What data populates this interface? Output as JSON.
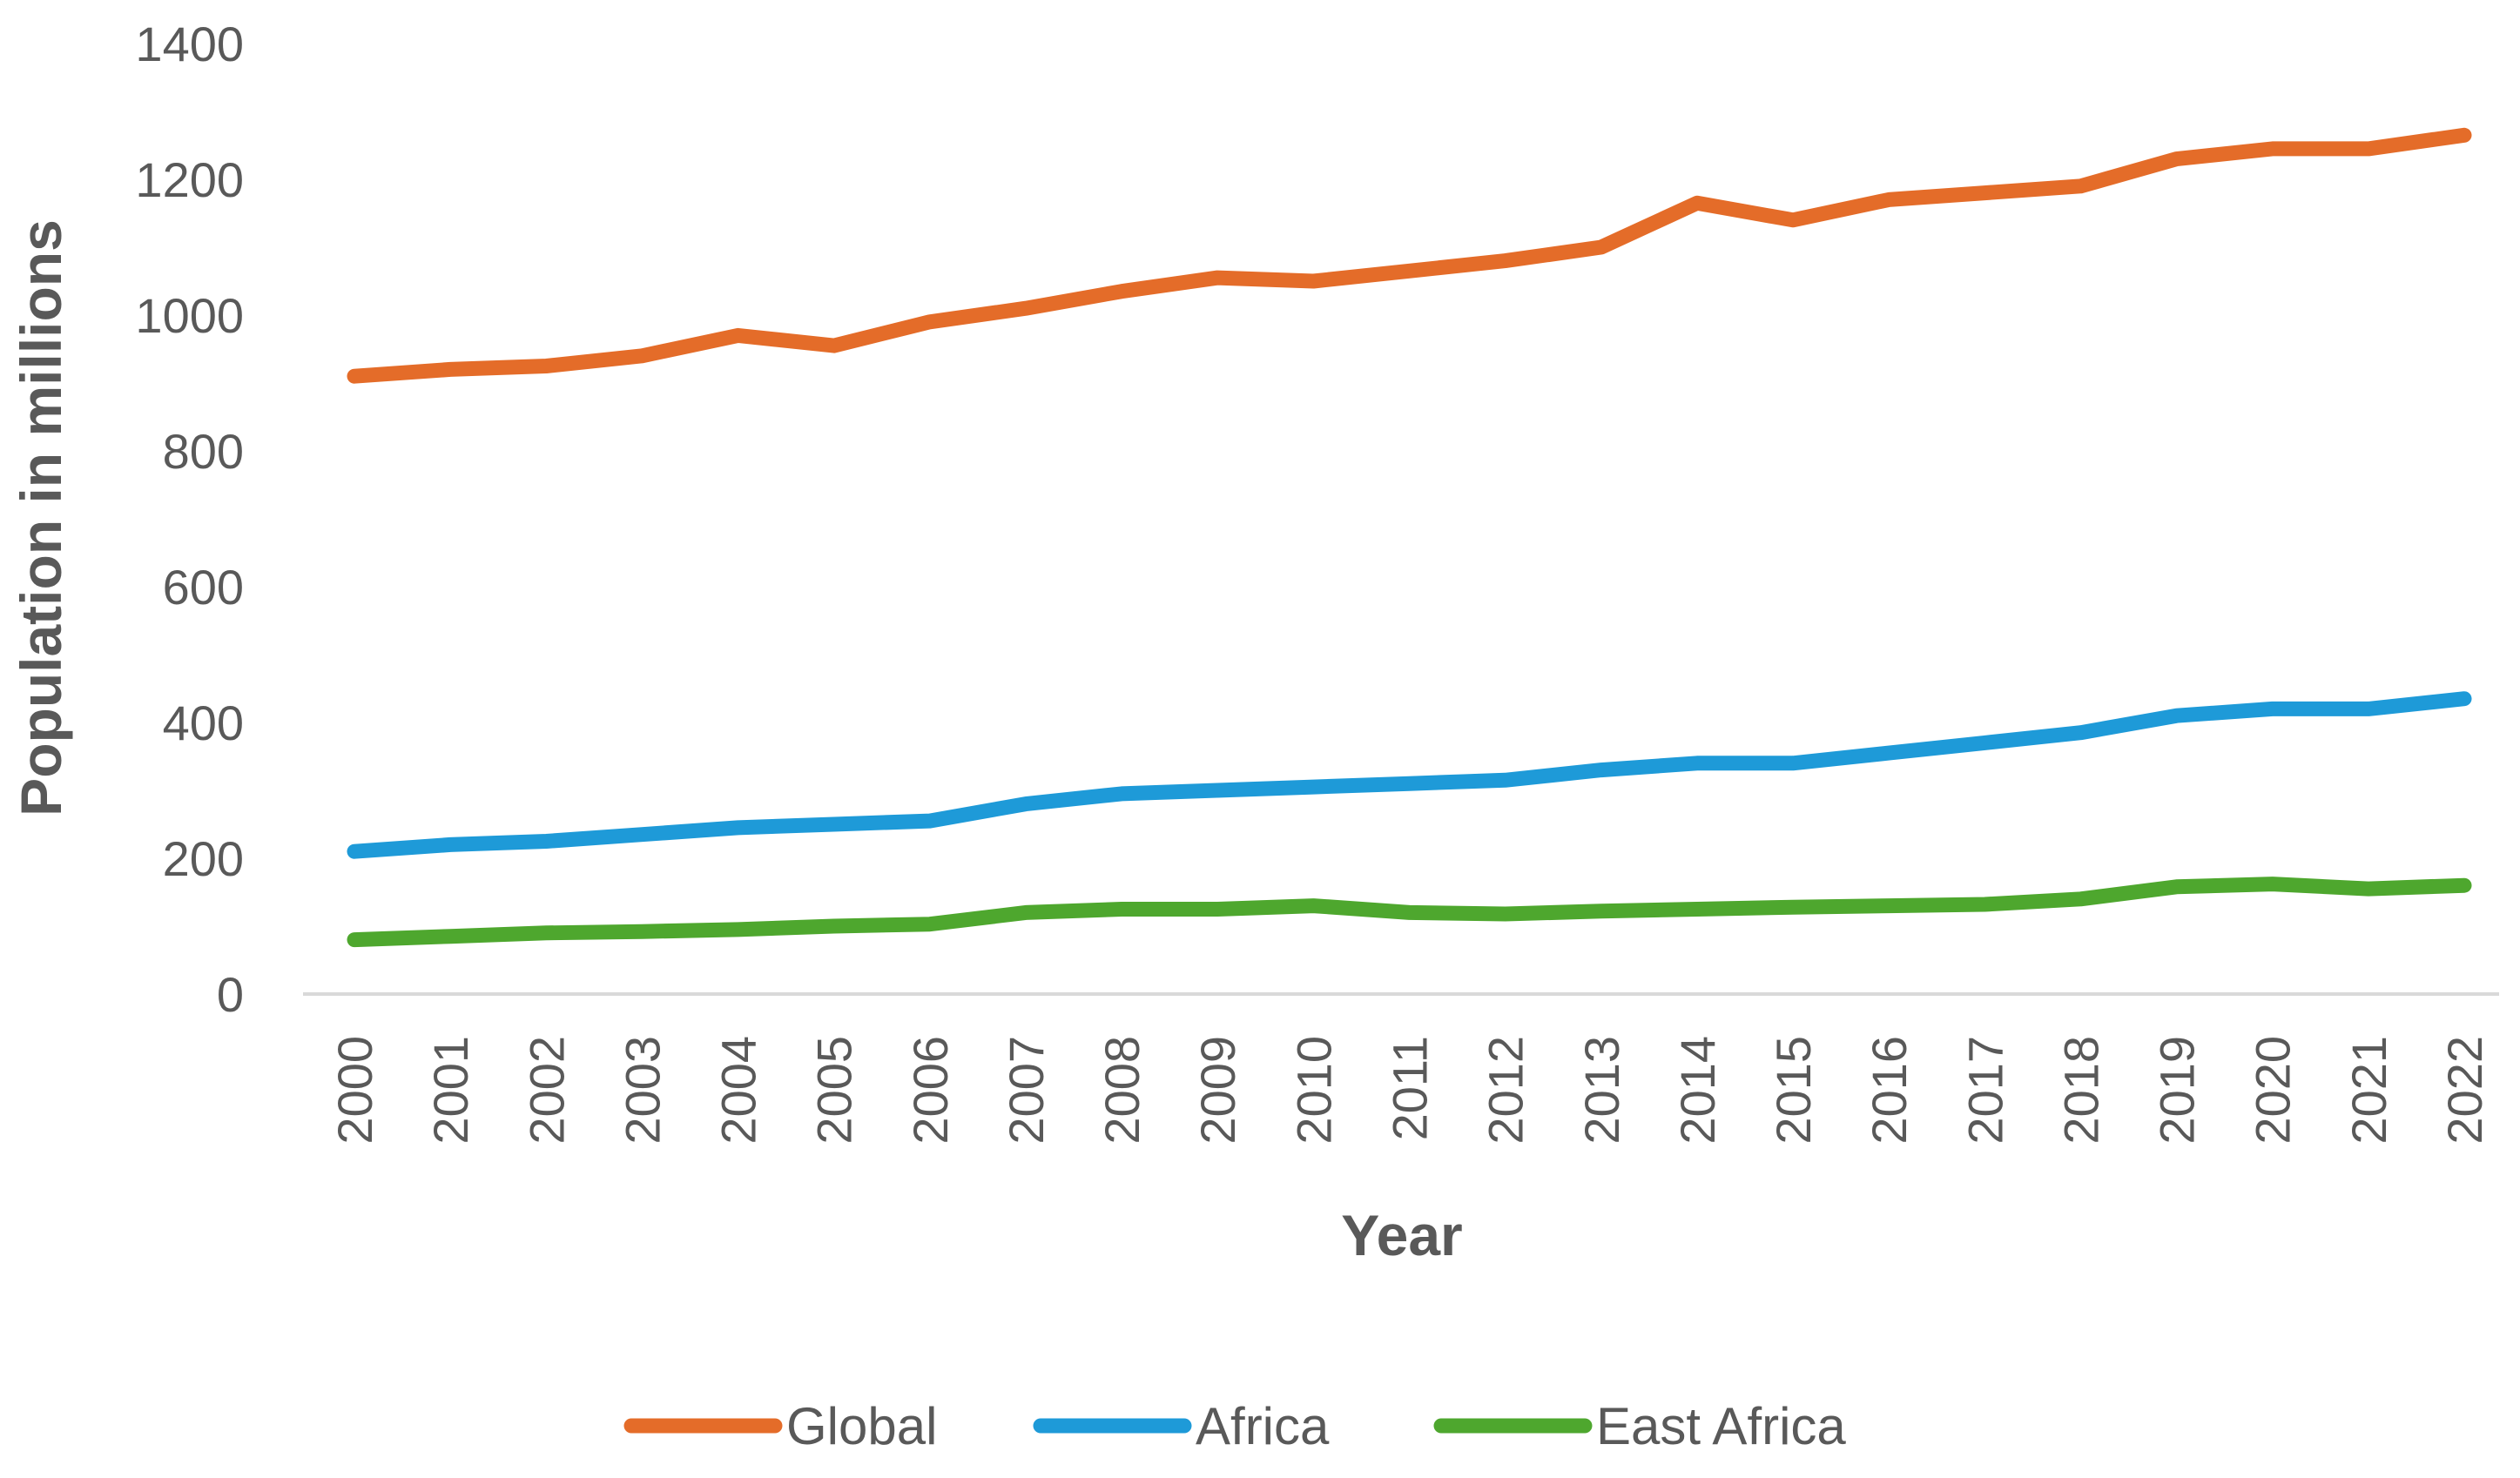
{
  "chart_data": {
    "type": "line",
    "title": "",
    "xlabel": "Year",
    "ylabel": "Population in millions",
    "ylim": [
      0,
      1400
    ],
    "yticks": [
      "0",
      "200",
      "400",
      "600",
      "800",
      "1000",
      "1200",
      "1400"
    ],
    "grid": false,
    "legend_position": "bottom",
    "categories": [
      "2000",
      "2001",
      "2002",
      "2003",
      "2004",
      "2005",
      "2006",
      "2007",
      "2008",
      "2009",
      "2010",
      "2011",
      "2012",
      "2013",
      "2014",
      "2015",
      "2016",
      "2017",
      "2018",
      "2019",
      "2020",
      "2021",
      "2022"
    ],
    "series": [
      {
        "name": "Global",
        "color": "#E46C29",
        "values": [
          910,
          920,
          925,
          940,
          970,
          955,
          990,
          1010,
          1035,
          1055,
          1050,
          1065,
          1080,
          1100,
          1165,
          1140,
          1170,
          1180,
          1190,
          1230,
          1245,
          1245,
          1265
        ]
      },
      {
        "name": "Africa",
        "color": "#1E9AD8",
        "values": [
          210,
          220,
          225,
          235,
          245,
          250,
          255,
          280,
          295,
          300,
          305,
          310,
          315,
          330,
          340,
          340,
          355,
          370,
          385,
          410,
          420,
          420,
          435
        ]
      },
      {
        "name": "East Africa",
        "color": "#4EA72E",
        "values": [
          80,
          85,
          90,
          92,
          95,
          100,
          103,
          120,
          125,
          125,
          130,
          120,
          118,
          122,
          125,
          128,
          130,
          132,
          140,
          158,
          162,
          155,
          160
        ]
      }
    ]
  }
}
